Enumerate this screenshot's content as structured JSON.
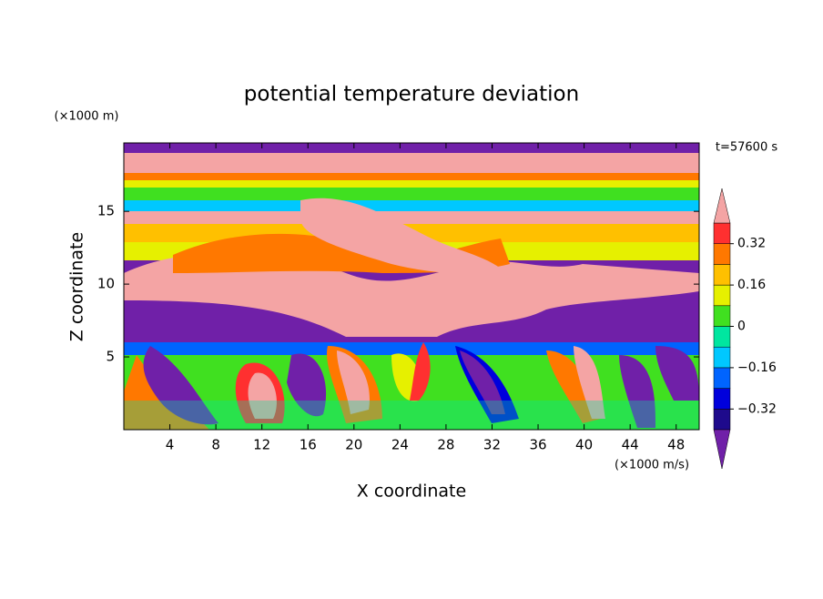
{
  "chart_data": {
    "type": "contour",
    "title": "potential temperature deviation",
    "x_label": "X coordinate",
    "y_label": "Z coordinate",
    "x_unit": "(×1000 m/s)",
    "y_unit": "(×1000 m)",
    "annotation": "t=57600 s",
    "xlim": [
      0,
      50
    ],
    "ylim": [
      0,
      19.7
    ],
    "xticks": [
      4,
      8,
      12,
      16,
      20,
      24,
      28,
      32,
      36,
      40,
      44,
      48
    ],
    "yticks": [
      5,
      10,
      15
    ],
    "levels": [
      -0.4,
      -0.32,
      -0.24,
      -0.16,
      -0.08,
      0,
      0.08,
      0.16,
      0.24,
      0.32,
      0.4
    ],
    "colors": [
      "#1e0a8c",
      "#0000dc",
      "#0064ff",
      "#00c8ff",
      "#00e6a0",
      "#40e020",
      "#e6f000",
      "#ffc000",
      "#ff7800",
      "#ff3030"
    ],
    "under_color": "#7020a8",
    "over_color": "#f4a4a4",
    "colorbar_ticks": [
      0.32,
      0.16,
      0,
      {
        "value": -0.16,
        "label": "−0.16"
      },
      {
        "value": -0.32,
        "label": "−0.32"
      }
    ]
  }
}
